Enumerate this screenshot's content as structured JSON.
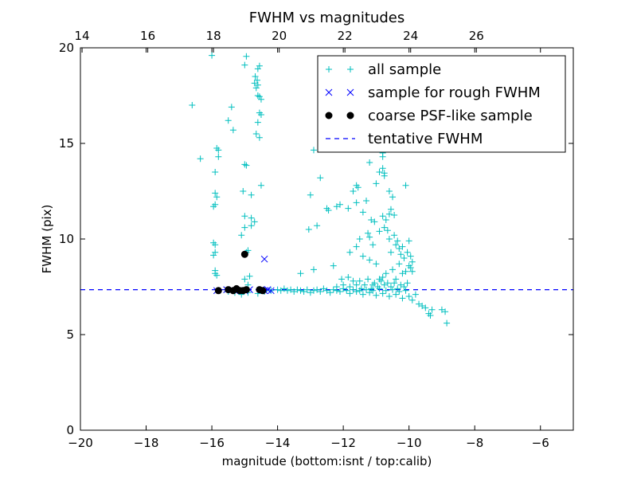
{
  "chart_data": {
    "type": "scatter",
    "title": "FWHM vs magnitudes",
    "xlabel": "magnitude (bottom:isnt / top:calib)",
    "ylabel": "FWHM (pix)",
    "xlim": [
      -20,
      -5
    ],
    "ylim": [
      0,
      20
    ],
    "xticks": [
      -20,
      -18,
      -16,
      -14,
      -12,
      -10,
      -8,
      -6
    ],
    "yticks": [
      0,
      5,
      10,
      15,
      20
    ],
    "top_axis": {
      "offset": 33.95,
      "ticks": [
        14,
        16,
        18,
        20,
        22,
        24,
        26
      ]
    },
    "legend_position": "top-right",
    "colors": {
      "all": "#00BFBF",
      "rough": "#0000FF",
      "coarse": "#000000",
      "tentative": "#0000FF"
    },
    "tentative_fwhm": 7.35,
    "series": [
      {
        "name": "all sample",
        "marker": "plus",
        "points": [
          [
            -16.0,
            19.6
          ],
          [
            -14.95,
            19.55
          ],
          [
            -15.0,
            19.1
          ],
          [
            -14.55,
            19.05
          ],
          [
            -14.6,
            18.9
          ],
          [
            -14.68,
            18.5
          ],
          [
            -14.62,
            18.3
          ],
          [
            -14.7,
            18.15
          ],
          [
            -14.6,
            18.05
          ],
          [
            -14.65,
            17.9
          ],
          [
            -14.6,
            17.5
          ],
          [
            -14.55,
            17.45
          ],
          [
            -14.5,
            17.3
          ],
          [
            -16.6,
            17.0
          ],
          [
            -15.4,
            16.9
          ],
          [
            -14.55,
            16.6
          ],
          [
            -14.5,
            16.5
          ],
          [
            -15.5,
            16.2
          ],
          [
            -14.6,
            16.1
          ],
          [
            -15.35,
            15.7
          ],
          [
            -14.65,
            15.5
          ],
          [
            -14.55,
            15.3
          ],
          [
            -15.85,
            14.75
          ],
          [
            -15.8,
            14.65
          ],
          [
            -15.8,
            14.3
          ],
          [
            -16.35,
            14.2
          ],
          [
            -15.9,
            13.5
          ],
          [
            -15.0,
            13.9
          ],
          [
            -14.95,
            13.85
          ],
          [
            -14.5,
            12.8
          ],
          [
            -15.05,
            12.5
          ],
          [
            -14.8,
            12.3
          ],
          [
            -15.9,
            12.4
          ],
          [
            -15.85,
            12.2
          ],
          [
            -15.9,
            11.8
          ],
          [
            -15.95,
            11.7
          ],
          [
            -15.0,
            11.2
          ],
          [
            -14.8,
            11.1
          ],
          [
            -14.7,
            10.9
          ],
          [
            -15.0,
            10.6
          ],
          [
            -14.8,
            10.7
          ],
          [
            -15.1,
            10.2
          ],
          [
            -15.95,
            9.8
          ],
          [
            -15.9,
            9.7
          ],
          [
            -15.9,
            9.3
          ],
          [
            -15.95,
            9.15
          ],
          [
            -15.9,
            8.35
          ],
          [
            -15.85,
            8.1
          ],
          [
            -15.9,
            8.2
          ],
          [
            -14.9,
            9.4
          ],
          [
            -14.95,
            9.3
          ],
          [
            -14.85,
            8.05
          ],
          [
            -15.0,
            7.9
          ],
          [
            -14.9,
            7.6
          ],
          [
            -15.5,
            7.25
          ],
          [
            -15.3,
            7.2
          ],
          [
            -15.1,
            7.1
          ],
          [
            -14.9,
            7.2
          ],
          [
            -14.6,
            7.15
          ],
          [
            -14.4,
            7.25
          ],
          [
            -14.2,
            7.3
          ],
          [
            -14.0,
            7.35
          ],
          [
            -13.9,
            7.3
          ],
          [
            -13.8,
            7.4
          ],
          [
            -13.7,
            7.3
          ],
          [
            -13.6,
            7.35
          ],
          [
            -13.5,
            7.25
          ],
          [
            -13.4,
            7.35
          ],
          [
            -13.3,
            7.3
          ],
          [
            -13.2,
            7.25
          ],
          [
            -13.1,
            7.35
          ],
          [
            -13.0,
            7.2
          ],
          [
            -12.9,
            7.3
          ],
          [
            -12.8,
            7.35
          ],
          [
            -12.7,
            7.25
          ],
          [
            -12.6,
            7.4
          ],
          [
            -12.5,
            7.3
          ],
          [
            -12.4,
            7.2
          ],
          [
            -12.3,
            7.35
          ],
          [
            -12.2,
            7.3
          ],
          [
            -12.1,
            7.25
          ],
          [
            -12.0,
            7.4
          ],
          [
            -11.9,
            7.3
          ],
          [
            -11.8,
            7.15
          ],
          [
            -11.7,
            7.35
          ],
          [
            -11.6,
            7.25
          ],
          [
            -11.5,
            7.3
          ],
          [
            -11.4,
            7.1
          ],
          [
            -11.3,
            7.35
          ],
          [
            -11.2,
            7.2
          ],
          [
            -11.1,
            7.3
          ],
          [
            -11.0,
            7.05
          ],
          [
            -10.9,
            7.4
          ],
          [
            -10.8,
            7.15
          ],
          [
            -10.7,
            7.3
          ],
          [
            -10.6,
            7.0
          ],
          [
            -10.5,
            7.35
          ],
          [
            -10.4,
            7.1
          ],
          [
            -10.3,
            7.25
          ],
          [
            -10.2,
            6.9
          ],
          [
            -10.1,
            7.3
          ],
          [
            -10.0,
            7.0
          ],
          [
            -9.9,
            6.8
          ],
          [
            -9.8,
            7.1
          ],
          [
            -9.7,
            6.6
          ],
          [
            -9.6,
            6.5
          ],
          [
            -9.5,
            6.4
          ],
          [
            -9.4,
            6.1
          ],
          [
            -9.3,
            6.3
          ],
          [
            -9.35,
            6.0
          ],
          [
            -9.0,
            6.3
          ],
          [
            -8.9,
            6.2
          ],
          [
            -8.85,
            5.6
          ],
          [
            -12.9,
            8.4
          ],
          [
            -12.3,
            8.6
          ],
          [
            -13.3,
            8.2
          ],
          [
            -12.0,
            7.6
          ],
          [
            -11.5,
            7.8
          ],
          [
            -11.8,
            7.5
          ],
          [
            -11.1,
            7.6
          ],
          [
            -10.9,
            7.9
          ],
          [
            -10.7,
            8.2
          ],
          [
            -10.5,
            8.4
          ],
          [
            -10.3,
            8.7
          ],
          [
            -10.2,
            8.2
          ],
          [
            -10.4,
            7.9
          ],
          [
            -10.1,
            8.3
          ],
          [
            -10.0,
            8.6
          ],
          [
            -9.9,
            8.8
          ],
          [
            -9.95,
            8.5
          ],
          [
            -10.05,
            7.7
          ],
          [
            -10.15,
            7.5
          ],
          [
            -10.25,
            7.6
          ],
          [
            -10.35,
            7.4
          ],
          [
            -10.45,
            7.7
          ],
          [
            -10.55,
            7.5
          ],
          [
            -10.65,
            7.7
          ],
          [
            -10.75,
            7.6
          ],
          [
            -10.85,
            7.8
          ],
          [
            -10.95,
            7.5
          ],
          [
            -11.05,
            7.7
          ],
          [
            -11.15,
            7.4
          ],
          [
            -11.25,
            7.9
          ],
          [
            -11.35,
            7.6
          ],
          [
            -11.45,
            7.4
          ],
          [
            -11.6,
            7.6
          ],
          [
            -11.7,
            7.8
          ],
          [
            -11.85,
            8.0
          ],
          [
            -12.05,
            7.9
          ],
          [
            -12.2,
            7.5
          ],
          [
            -10.55,
            9.3
          ],
          [
            -10.3,
            9.5
          ],
          [
            -10.25,
            9.2
          ],
          [
            -10.15,
            9.0
          ],
          [
            -10.4,
            9.7
          ],
          [
            -10.0,
            9.9
          ],
          [
            -10.6,
            10.0
          ],
          [
            -10.45,
            10.2
          ],
          [
            -10.9,
            10.4
          ],
          [
            -10.75,
            10.6
          ],
          [
            -11.15,
            11.0
          ],
          [
            -10.7,
            11.0
          ],
          [
            -10.6,
            11.3
          ],
          [
            -10.8,
            11.2
          ],
          [
            -11.5,
            10.0
          ],
          [
            -11.2,
            10.1
          ],
          [
            -11.25,
            10.3
          ],
          [
            -10.35,
            9.9
          ],
          [
            -10.2,
            9.6
          ],
          [
            -10.8,
            8.0
          ],
          [
            -11.3,
            12.0
          ],
          [
            -11.6,
            11.9
          ],
          [
            -11.7,
            12.5
          ],
          [
            -10.9,
            13.5
          ],
          [
            -10.8,
            13.7
          ],
          [
            -10.75,
            13.3
          ],
          [
            -11.0,
            12.9
          ],
          [
            -11.6,
            12.8
          ],
          [
            -11.55,
            12.7
          ],
          [
            -10.6,
            12.5
          ],
          [
            -11.85,
            11.6
          ],
          [
            -10.5,
            12.2
          ],
          [
            -10.1,
            12.8
          ],
          [
            -11.2,
            14.0
          ],
          [
            -10.8,
            14.5
          ],
          [
            -10.8,
            14.3
          ],
          [
            -10.75,
            13.45
          ],
          [
            -12.1,
            11.8
          ],
          [
            -12.2,
            11.7
          ],
          [
            -11.4,
            11.4
          ],
          [
            -12.9,
            14.65
          ],
          [
            -13.0,
            12.3
          ],
          [
            -12.7,
            13.2
          ],
          [
            -12.5,
            11.6
          ],
          [
            -12.45,
            11.5
          ],
          [
            -12.8,
            10.7
          ],
          [
            -13.05,
            10.5
          ],
          [
            -11.8,
            9.3
          ],
          [
            -11.6,
            9.6
          ],
          [
            -11.4,
            9.1
          ],
          [
            -11.2,
            8.9
          ],
          [
            -11.0,
            8.7
          ],
          [
            -11.1,
            9.7
          ],
          [
            -10.55,
            11.55
          ],
          [
            -10.45,
            11.25
          ],
          [
            -10.65,
            10.45
          ],
          [
            -11.05,
            10.9
          ],
          [
            -10.05,
            9.3
          ],
          [
            -9.95,
            9.1
          ],
          [
            -9.9,
            8.3
          ]
        ]
      },
      {
        "name": "sample for rough FWHM",
        "marker": "x",
        "points": [
          [
            -14.4,
            8.95
          ],
          [
            -15.85,
            7.3
          ],
          [
            -15.55,
            7.35
          ],
          [
            -15.3,
            7.3
          ],
          [
            -15.0,
            7.3
          ],
          [
            -14.85,
            7.35
          ],
          [
            -14.5,
            7.35
          ],
          [
            -14.4,
            7.3
          ],
          [
            -14.3,
            7.35
          ],
          [
            -14.2,
            7.3
          ]
        ]
      },
      {
        "name": "coarse PSF-like sample",
        "marker": "circle",
        "points": [
          [
            -15.0,
            9.2
          ],
          [
            -15.8,
            7.3
          ],
          [
            -15.5,
            7.35
          ],
          [
            -15.35,
            7.3
          ],
          [
            -15.25,
            7.4
          ],
          [
            -15.15,
            7.3
          ],
          [
            -15.05,
            7.3
          ],
          [
            -14.95,
            7.35
          ],
          [
            -14.55,
            7.35
          ],
          [
            -14.45,
            7.3
          ]
        ]
      }
    ],
    "legend": [
      {
        "label": "all sample",
        "marker": "plus"
      },
      {
        "label": "sample for rough FWHM",
        "marker": "x"
      },
      {
        "label": "coarse PSF-like sample",
        "marker": "circle"
      },
      {
        "label": "tentative FWHM",
        "marker": "dashed-line"
      }
    ]
  }
}
